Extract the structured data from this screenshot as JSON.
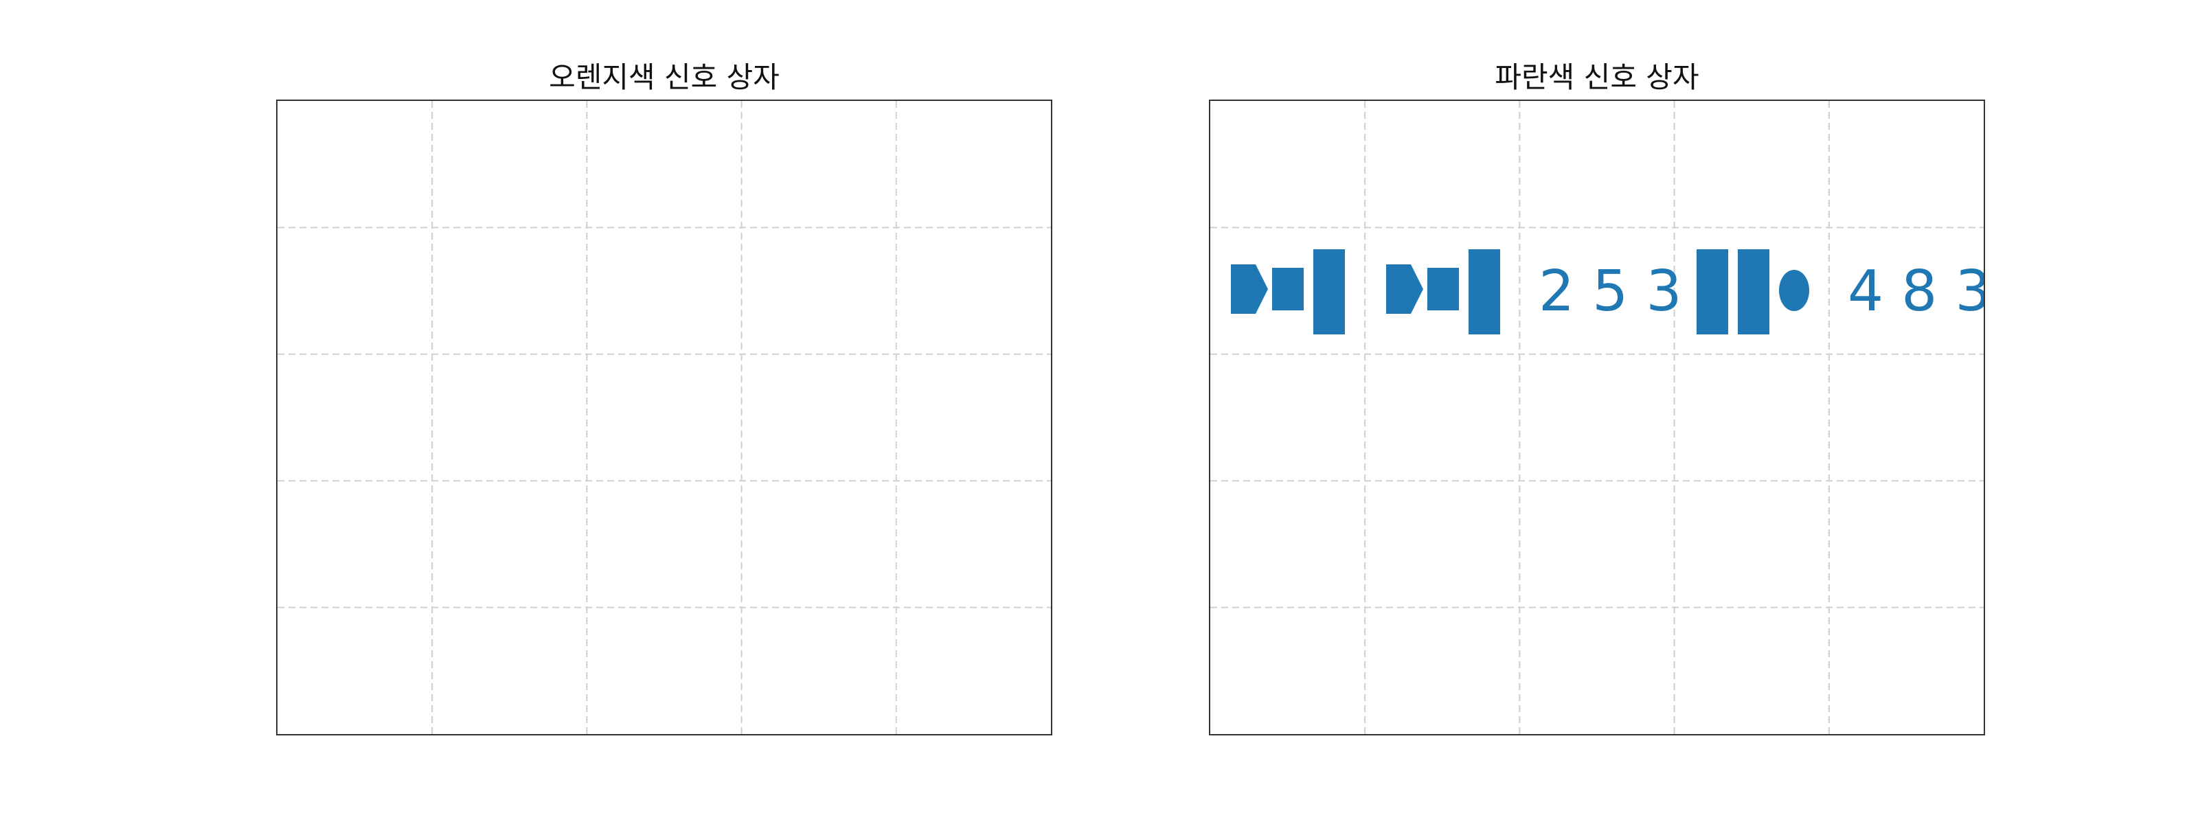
{
  "panels": [
    {
      "id": "orange",
      "title": "오렌지색 신호 상자",
      "grid": {
        "cols": 5,
        "rows": 5
      },
      "color": "#f07f1a",
      "groups": []
    },
    {
      "id": "blue",
      "title": "파란색 신호 상자",
      "grid": {
        "cols": 5,
        "rows": 5
      },
      "color": "#1f77b4",
      "groups": [
        {
          "shapes": [
            "arrow",
            "square",
            "tall-rectangle"
          ],
          "number": ""
        },
        {
          "shapes": [
            "arrow",
            "square",
            "tall-rectangle"
          ],
          "number": "253"
        },
        {
          "shapes": [
            "tall-rectangle",
            "tall-rectangle",
            "ellipse"
          ],
          "number": "483"
        }
      ]
    }
  ],
  "grid_color": "#cfcfcf"
}
